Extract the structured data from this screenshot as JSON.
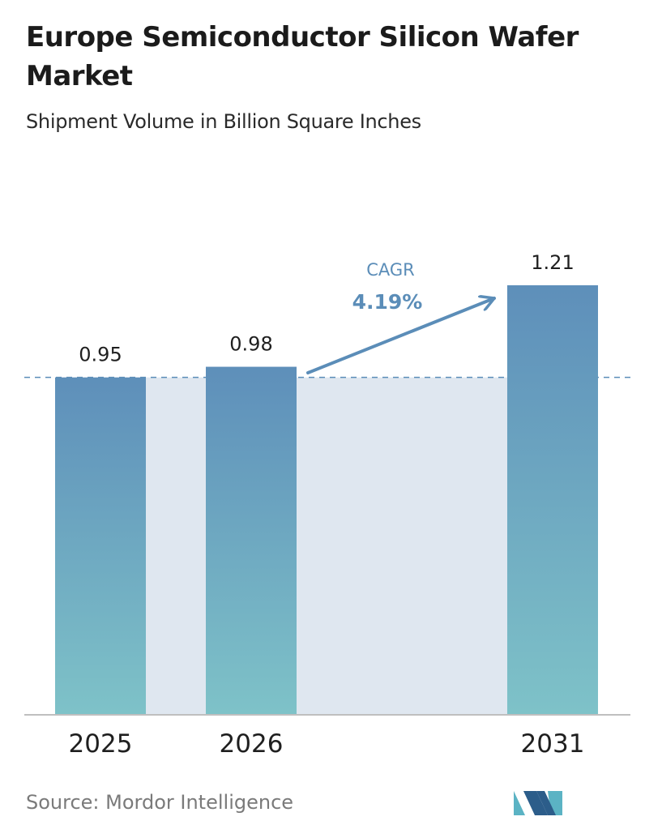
{
  "header": {
    "title": "Europe Semiconductor Silicon Wafer Market",
    "subtitle": "Shipment Volume in Billion Square Inches"
  },
  "chart_data": {
    "type": "bar",
    "title": "Europe Semiconductor Silicon Wafer Market",
    "subtitle": "Shipment Volume in Billion Square Inches",
    "categories": [
      "2025",
      "2026",
      "2031"
    ],
    "values": [
      0.95,
      0.98,
      1.21
    ],
    "value_labels": [
      "0.95",
      "0.98",
      "1.21"
    ],
    "xlabel": "",
    "ylabel": "",
    "ylim": [
      0,
      1.21
    ],
    "grid": false,
    "reference_line": 0.95,
    "annotation": {
      "label": "CAGR",
      "value": "4.19%"
    },
    "colors": {
      "bar_top": "#5e8fba",
      "bar_bottom": "#7ec2c8",
      "band": "#dfe7f0",
      "arrow": "#5b8db8",
      "reference_line": "#5b8db8",
      "axis": "#bfbfbf"
    }
  },
  "footer": {
    "source": "Source:  Mordor Intelligence",
    "logo_colors": [
      "#5bb3c4",
      "#2c5d8a"
    ]
  }
}
